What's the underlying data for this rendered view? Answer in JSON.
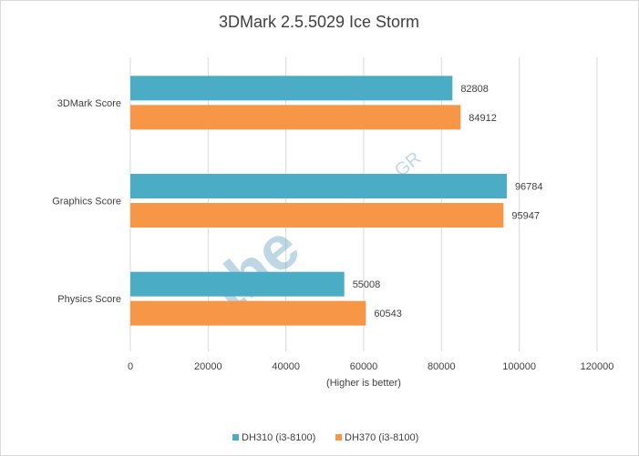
{
  "chart_data": {
    "type": "bar",
    "orientation": "horizontal",
    "title": "3DMark 2.5.5029 Ice Storm",
    "xlabel": "(Higher is better)",
    "ylabel": "",
    "categories": [
      "3DMark Score",
      "Graphics Score",
      "Physics Score"
    ],
    "series": [
      {
        "name": "DH310 (i3-8100)",
        "color": "#4bacc6",
        "values": [
          82808,
          96784,
          55008
        ]
      },
      {
        "name": "DH370 (i3-8100)",
        "color": "#f79646",
        "values": [
          84912,
          95947,
          60543
        ]
      }
    ],
    "xlim": [
      0,
      120000
    ],
    "xticks": [
      0,
      20000,
      40000,
      60000,
      80000,
      100000,
      120000
    ],
    "grid": true,
    "legend": "bottom",
    "data_labels": true
  },
  "watermark": "thelab.gr"
}
